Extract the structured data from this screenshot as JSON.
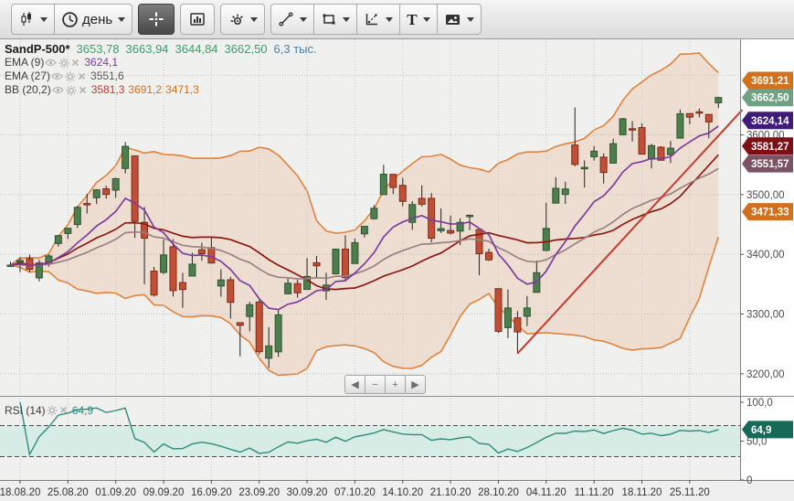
{
  "toolbar": {
    "interval_label": "день",
    "text_tool_label": "T"
  },
  "legend": {
    "symbol": "SandP-500*",
    "open": "3653,78",
    "high": "3663,94",
    "low": "3644,84",
    "close": "3662,50",
    "volume": "6,3 тыс.",
    "indicators": [
      {
        "name": "EMA (9)",
        "value": "3624,1"
      },
      {
        "name": "EMA (27)",
        "value": "3551,6"
      },
      {
        "name": "BB (20,2)",
        "value1": "3581,3",
        "value2": "3691,2",
        "value3": "3471,3"
      }
    ],
    "rsi_name": "RSI (14)",
    "rsi_value": "64,9"
  },
  "nav": {
    "prev": "◀",
    "zoom_out": "−",
    "zoom_in": "+",
    "next": "▶"
  },
  "chart_data": {
    "type": "candlestick",
    "symbol": "SandP-500*",
    "interval": "день",
    "ylim": [
      3163,
      3760
    ],
    "grid_prices": [
      3200,
      3300,
      3400,
      3500,
      3600,
      3700
    ],
    "y_ticks": [
      {
        "price": 3600,
        "label": "3600,00"
      },
      {
        "price": 3500,
        "label": "3500,00"
      },
      {
        "price": 3400,
        "label": "3400,00"
      },
      {
        "price": 3300,
        "label": "3300,00"
      },
      {
        "price": 3200,
        "label": "3200,00"
      }
    ],
    "x_label_indices": [
      1,
      6,
      11,
      16,
      21,
      26,
      31,
      36,
      41,
      46,
      51,
      56,
      61,
      66,
      71
    ],
    "x_labels": [
      "18.08.20",
      "25.08.20",
      "01.09.20",
      "09.09.20",
      "16.09.20",
      "23.09.20",
      "30.09.20",
      "07.10.20",
      "14.10.20",
      "21.10.20",
      "28.10.20",
      "04.11.20",
      "11.11.20",
      "18.11.20",
      "25.11.20"
    ],
    "candles": [
      [
        "17.08.20",
        3380.9,
        3387.6,
        3379.2,
        3382.0
      ],
      [
        "18.08.20",
        3387.0,
        3395.1,
        3370.2,
        3389.8
      ],
      [
        "19.08.20",
        3392.5,
        3399.5,
        3369.7,
        3374.9
      ],
      [
        "20.08.20",
        3360.5,
        3390.8,
        3354.7,
        3385.5
      ],
      [
        "21.08.20",
        3386.0,
        3400.0,
        3379.3,
        3397.2
      ],
      [
        "24.08.20",
        3418.1,
        3432.1,
        3413.1,
        3431.3
      ],
      [
        "25.08.20",
        3435.0,
        3444.2,
        3425.8,
        3443.6
      ],
      [
        "26.08.20",
        3449.9,
        3481.1,
        3444.2,
        3478.7
      ],
      [
        "27.08.20",
        3485.1,
        3501.4,
        3468.3,
        3484.6
      ],
      [
        "28.08.20",
        3494.7,
        3509.2,
        3484.3,
        3508.0
      ],
      [
        "31.08.20",
        3509.7,
        3514.8,
        3493.3,
        3500.3
      ],
      [
        "01.09.20",
        3507.4,
        3528.0,
        3494.6,
        3526.7
      ],
      [
        "02.09.20",
        3543.8,
        3588.1,
        3535.2,
        3580.8
      ],
      [
        "03.09.20",
        3564.7,
        3564.9,
        3427.4,
        3455.1
      ],
      [
        "04.09.20",
        3453.6,
        3479.2,
        3349.6,
        3427.0
      ],
      [
        "08.09.20",
        3371.9,
        3379.0,
        3329.3,
        3331.8
      ],
      [
        "09.09.20",
        3369.8,
        3424.8,
        3366.8,
        3399.0
      ],
      [
        "10.09.20",
        3412.6,
        3425.6,
        3329.3,
        3339.2
      ],
      [
        "11.09.20",
        3352.7,
        3368.9,
        3310.5,
        3341.0
      ],
      [
        "14.09.20",
        3363.6,
        3402.9,
        3363.6,
        3383.5
      ],
      [
        "15.09.20",
        3407.7,
        3419.5,
        3389.2,
        3401.2
      ],
      [
        "16.09.20",
        3411.2,
        3428.9,
        3384.5,
        3385.5
      ],
      [
        "17.09.20",
        3346.9,
        3375.2,
        3328.8,
        3357.0
      ],
      [
        "18.09.20",
        3357.4,
        3362.3,
        3292.4,
        3319.5
      ],
      [
        "21.09.20",
        3285.6,
        3285.6,
        3229.1,
        3281.1
      ],
      [
        "22.09.20",
        3295.8,
        3320.3,
        3270.9,
        3315.6
      ],
      [
        "23.09.20",
        3320.1,
        3323.4,
        3232.6,
        3236.9
      ],
      [
        "24.09.20",
        3226.1,
        3278.0,
        3209.5,
        3246.6
      ],
      [
        "25.09.20",
        3236.7,
        3306.9,
        3228.4,
        3298.5
      ],
      [
        "28.09.20",
        3333.9,
        3360.7,
        3332.9,
        3351.6
      ],
      [
        "29.09.20",
        3350.9,
        3357.2,
        3327.5,
        3335.5
      ],
      [
        "30.09.20",
        3341.2,
        3393.6,
        3340.5,
        3363.0
      ],
      [
        "01.10.20",
        3385.9,
        3397.2,
        3361.4,
        3380.8
      ],
      [
        "02.10.20",
        3338.9,
        3369.1,
        3323.7,
        3348.4
      ],
      [
        "05.10.20",
        3367.3,
        3409.6,
        3367.3,
        3408.6
      ],
      [
        "06.10.20",
        3408.7,
        3431.6,
        3354.5,
        3361.0
      ],
      [
        "07.10.20",
        3384.6,
        3426.3,
        3384.6,
        3419.5
      ],
      [
        "08.10.20",
        3434.3,
        3447.3,
        3428.2,
        3446.8
      ],
      [
        "09.10.20",
        3459.7,
        3482.3,
        3458.0,
        3477.1
      ],
      [
        "12.10.20",
        3500.0,
        3549.9,
        3499.6,
        3534.2
      ],
      [
        "13.10.20",
        3534.0,
        3534.0,
        3500.9,
        3511.9
      ],
      [
        "14.10.20",
        3515.5,
        3527.9,
        3480.6,
        3488.7
      ],
      [
        "15.10.20",
        3453.5,
        3489.1,
        3440.9,
        3483.3
      ],
      [
        "16.10.20",
        3493.6,
        3515.8,
        3480.1,
        3483.8
      ],
      [
        "19.10.20",
        3493.7,
        3502.4,
        3419.9,
        3426.9
      ],
      [
        "20.10.20",
        3439.4,
        3476.9,
        3435.7,
        3443.1
      ],
      [
        "21.10.20",
        3439.9,
        3464.9,
        3433.1,
        3435.6
      ],
      [
        "22.10.20",
        3438.8,
        3460.5,
        3415.3,
        3453.5
      ],
      [
        "23.10.20",
        3464.9,
        3466.5,
        3440.4,
        3465.4
      ],
      [
        "26.10.20",
        3441.4,
        3441.4,
        3364.9,
        3401.0
      ],
      [
        "27.10.20",
        3403.2,
        3409.5,
        3388.7,
        3390.7
      ],
      [
        "28.10.20",
        3342.5,
        3342.5,
        3268.9,
        3271.0
      ],
      [
        "29.10.20",
        3277.2,
        3341.1,
        3259.8,
        3310.1
      ],
      [
        "30.10.20",
        3293.6,
        3304.9,
        3233.9,
        3270.0
      ],
      [
        "02.11.20",
        3296.2,
        3330.1,
        3279.7,
        3310.2
      ],
      [
        "03.11.20",
        3336.3,
        3389.5,
        3336.3,
        3369.2
      ],
      [
        "04.11.20",
        3406.5,
        3486.2,
        3405.2,
        3443.4
      ],
      [
        "05.11.20",
        3485.7,
        3529.1,
        3485.7,
        3510.5
      ],
      [
        "06.11.20",
        3500.2,
        3521.6,
        3484.3,
        3509.4
      ],
      [
        "09.11.20",
        3583.0,
        3646.0,
        3547.5,
        3550.5
      ],
      [
        "10.11.20",
        3543.3,
        3557.2,
        3511.9,
        3545.5
      ],
      [
        "11.11.20",
        3563.2,
        3581.2,
        3557.0,
        3572.7
      ],
      [
        "12.11.20",
        3562.7,
        3569.0,
        3518.6,
        3537.0
      ],
      [
        "13.11.20",
        3552.6,
        3593.7,
        3552.6,
        3585.2
      ],
      [
        "16.11.20",
        3600.2,
        3628.5,
        3600.2,
        3626.9
      ],
      [
        "17.11.20",
        3610.3,
        3623.1,
        3588.7,
        3609.5
      ],
      [
        "18.11.20",
        3612.1,
        3619.1,
        3567.3,
        3567.8
      ],
      [
        "19.11.20",
        3559.4,
        3585.2,
        3543.8,
        3581.9
      ],
      [
        "20.11.20",
        3579.3,
        3581.2,
        3556.9,
        3557.5
      ],
      [
        "23.11.20",
        3566.8,
        3589.8,
        3552.8,
        3577.6
      ],
      [
        "24.11.20",
        3594.5,
        3642.3,
        3594.5,
        3635.4
      ],
      [
        "25.11.20",
        3635.7,
        3635.7,
        3617.8,
        3629.7
      ],
      [
        "27.11.20",
        3638.6,
        3644.3,
        3629.3,
        3638.4
      ],
      [
        "30.11.20",
        3634.2,
        3634.2,
        3594.4,
        3621.6
      ],
      [
        "01.12.20",
        3653.78,
        3663.94,
        3644.84,
        3662.5
      ]
    ],
    "overlays": {
      "ema9": {
        "period": 9,
        "color": "#7c3e9d",
        "last_value": 3624.1
      },
      "ema27": {
        "period": 27,
        "color": "#9b8083",
        "last_value": 3551.6
      },
      "bollinger": {
        "period": 20,
        "stddev": 2,
        "mid_color": "#8c1a12",
        "band_color": "#e0833c",
        "fill": "rgba(224,131,60,0.16)",
        "last_mid": 3581.3,
        "last_upper": 3691.2,
        "last_lower": 3471.3
      }
    },
    "trendline": {
      "from_index": 53,
      "from_price": 3233.9,
      "to_index": 76.5,
      "to_price": 3642,
      "color": "#c63a2c"
    },
    "price_tags": [
      {
        "label": "3691,21",
        "price": 3691.21,
        "color": "#d2701e"
      },
      {
        "label": "3662,50",
        "price": 3662.5,
        "color": "#6fa183"
      },
      {
        "label": "3624,14",
        "price": 3624.14,
        "color": "#3e1c77"
      },
      {
        "label": "3581,27",
        "price": 3581.27,
        "color": "#7e0e14"
      },
      {
        "label": "3551,57",
        "price": 3551.57,
        "color": "#7c5364"
      },
      {
        "label": "3471,33",
        "price": 3471.33,
        "color": "#d2701e"
      }
    ],
    "rsi": {
      "period": 14,
      "value": 64.9,
      "tag_label": "64,9",
      "levels": [
        30,
        70
      ],
      "color": "#2f8c7c",
      "tag_color": "#156a58",
      "band_fill": "#d7ece4",
      "ticks": [
        {
          "v": 100,
          "label": "100,0"
        },
        {
          "v": 50,
          "label": "50,0"
        },
        {
          "v": 0,
          "label": "0"
        }
      ]
    },
    "candle_up_color": "#4e7e4c",
    "candle_down_color": "#c14f35"
  }
}
